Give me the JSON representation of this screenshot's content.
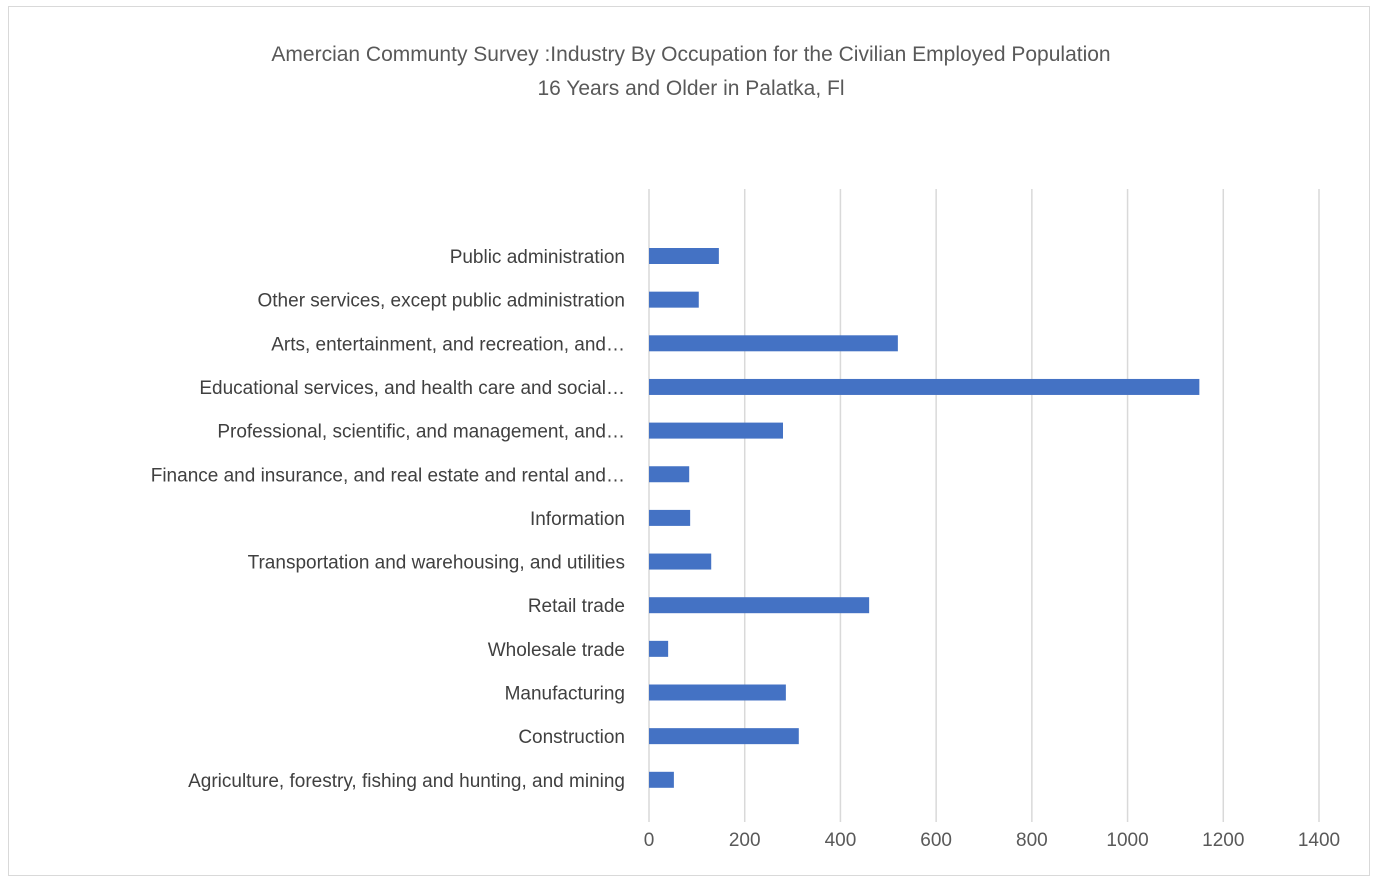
{
  "chart_data": {
    "type": "bar",
    "orientation": "horizontal",
    "title": "Amercian Communty Survey :Industry By Occupation for the Civilian Employed Population",
    "subtitle": "16 Years and Older in Palatka, Fl",
    "xlabel": "",
    "ylabel": "",
    "xlim": [
      0,
      1400
    ],
    "x_ticks": [
      0,
      200,
      400,
      600,
      800,
      1000,
      1200,
      1400
    ],
    "grid": true,
    "legend": "none",
    "categories": [
      "Public administration",
      "Other services, except public administration",
      "Arts, entertainment, and recreation, and…",
      "Educational services, and health care and social…",
      "Professional, scientific, and management, and…",
      "Finance and insurance, and real estate and rental and…",
      "Information",
      "Transportation and warehousing, and utilities",
      "Retail trade",
      "Wholesale trade",
      "Manufacturing",
      "Construction",
      "Agriculture, forestry, fishing and hunting, and mining"
    ],
    "values": [
      146,
      104,
      520,
      1150,
      280,
      84,
      86,
      130,
      460,
      40,
      286,
      313,
      52
    ],
    "colors": {
      "bar": "#4472c4",
      "grid": "#d9d9d9",
      "title": "#595959",
      "label": "#404040"
    }
  }
}
